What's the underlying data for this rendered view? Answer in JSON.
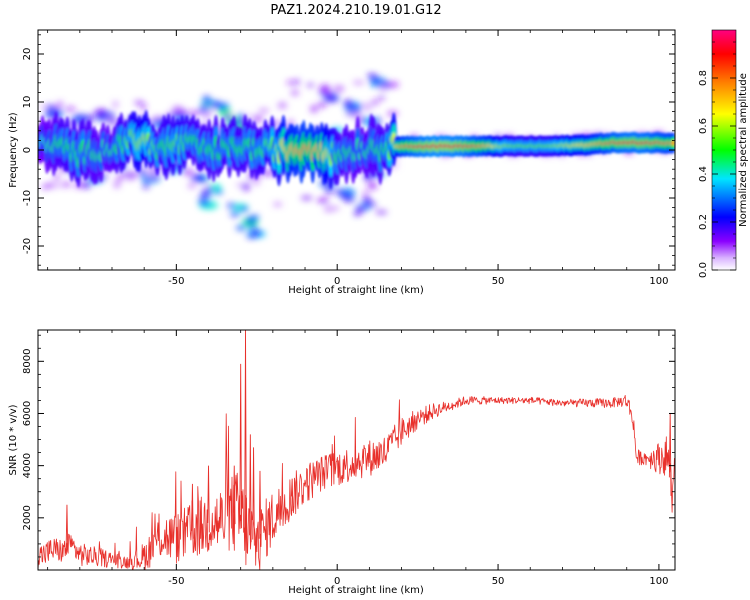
{
  "figure_title": "PAZ1.2024.210.19.01.G12",
  "chart_data": [
    {
      "type": "heatmap",
      "title": "",
      "xlabel": "Height of straight line (km)",
      "ylabel": "Frequency (Hz)",
      "xlim": [
        -93,
        105
      ],
      "ylim": [
        -25,
        25
      ],
      "x_ticks": [
        -50,
        0,
        50,
        100
      ],
      "y_ticks": [
        -20,
        -10,
        0,
        10,
        20
      ],
      "colorbar": {
        "label": "Normalized spectral amplitude",
        "range": [
          0,
          1
        ],
        "ticks": [
          0.0,
          0.2,
          0.4,
          0.6,
          0.8
        ],
        "tick_labels": [
          "0.0",
          "0.2",
          "0.4",
          "0.6",
          "0.8"
        ],
        "colormap": [
          "#ffffff",
          "#8a00ff",
          "#0000ff",
          "#00e5ff",
          "#00ff00",
          "#ffff00",
          "#ff8000",
          "#ff0000",
          "#ff0080"
        ]
      },
      "ridge": [
        {
          "x": -92,
          "f": 1.0,
          "a": 0.4
        },
        {
          "x": -85,
          "f": 0.5,
          "a": 0.5
        },
        {
          "x": -80,
          "f": -1.0,
          "a": 0.5
        },
        {
          "x": -75,
          "f": 0.0,
          "a": 0.45
        },
        {
          "x": -70,
          "f": 0.5,
          "a": 0.45
        },
        {
          "x": -65,
          "f": 2.0,
          "a": 0.55
        },
        {
          "x": -60,
          "f": 2.0,
          "a": 0.6
        },
        {
          "x": -55,
          "f": 0.0,
          "a": 0.5
        },
        {
          "x": -50,
          "f": 1.5,
          "a": 0.55
        },
        {
          "x": -45,
          "f": 1.0,
          "a": 0.5
        },
        {
          "x": -40,
          "f": 0.0,
          "a": 0.5
        },
        {
          "x": -35,
          "f": 0.0,
          "a": 0.5
        },
        {
          "x": -30,
          "f": 1.0,
          "a": 0.5
        },
        {
          "x": -25,
          "f": 0.0,
          "a": 0.5
        },
        {
          "x": -20,
          "f": 0.0,
          "a": 0.55
        },
        {
          "x": -15,
          "f": 0.0,
          "a": 0.7
        },
        {
          "x": -10,
          "f": 0.5,
          "a": 0.75
        },
        {
          "x": -5,
          "f": 0.5,
          "a": 0.7
        },
        {
          "x": 0,
          "f": -1.0,
          "a": 0.5
        },
        {
          "x": 5,
          "f": 0.0,
          "a": 0.45
        },
        {
          "x": 10,
          "f": 0.5,
          "a": 0.45
        },
        {
          "x": 15,
          "f": 0.5,
          "a": 0.5
        },
        {
          "x": 20,
          "f": 0.8,
          "a": 0.75
        },
        {
          "x": 25,
          "f": 0.8,
          "a": 0.85
        },
        {
          "x": 30,
          "f": 0.8,
          "a": 0.9
        },
        {
          "x": 35,
          "f": 0.8,
          "a": 0.9
        },
        {
          "x": 40,
          "f": 0.8,
          "a": 0.85
        },
        {
          "x": 45,
          "f": 0.8,
          "a": 0.75
        },
        {
          "x": 50,
          "f": 0.8,
          "a": 0.6
        },
        {
          "x": 55,
          "f": 0.8,
          "a": 0.55
        },
        {
          "x": 60,
          "f": 0.8,
          "a": 0.55
        },
        {
          "x": 65,
          "f": 0.8,
          "a": 0.55
        },
        {
          "x": 70,
          "f": 0.9,
          "a": 0.6
        },
        {
          "x": 75,
          "f": 1.0,
          "a": 0.65
        },
        {
          "x": 80,
          "f": 1.2,
          "a": 0.7
        },
        {
          "x": 85,
          "f": 1.5,
          "a": 0.8
        },
        {
          "x": 90,
          "f": 1.5,
          "a": 0.85
        },
        {
          "x": 95,
          "f": 1.5,
          "a": 0.85
        },
        {
          "x": 100,
          "f": 1.5,
          "a": 0.8
        },
        {
          "x": 104,
          "f": 1.5,
          "a": 0.75
        }
      ],
      "blobs": [
        {
          "x": -88,
          "f": 7.5,
          "a": 0.3
        },
        {
          "x": -80,
          "f": 6.5,
          "a": 0.3
        },
        {
          "x": -72,
          "f": 7.0,
          "a": 0.25
        },
        {
          "x": -82,
          "f": -4.0,
          "a": 0.3
        },
        {
          "x": -75,
          "f": -6.0,
          "a": 0.3
        },
        {
          "x": -68,
          "f": -3.0,
          "a": 0.3
        },
        {
          "x": -62,
          "f": 5.0,
          "a": 0.3
        },
        {
          "x": -55,
          "f": 5.5,
          "a": 0.35
        },
        {
          "x": -48,
          "f": 6.0,
          "a": 0.35
        },
        {
          "x": -40,
          "f": 9.5,
          "a": 0.4
        },
        {
          "x": -35,
          "f": 8.0,
          "a": 0.45
        },
        {
          "x": -32,
          "f": 6.0,
          "a": 0.45
        },
        {
          "x": -30,
          "f": 4.0,
          "a": 0.5
        },
        {
          "x": -42,
          "f": -6.0,
          "a": 0.4
        },
        {
          "x": -38,
          "f": -8.0,
          "a": 0.4
        },
        {
          "x": -40,
          "f": -11.5,
          "a": 0.4
        },
        {
          "x": -30,
          "f": -12.0,
          "a": 0.4
        },
        {
          "x": -27,
          "f": -15.0,
          "a": 0.45
        },
        {
          "x": -25,
          "f": -17.5,
          "a": 0.35
        },
        {
          "x": -58,
          "f": -6.0,
          "a": 0.3
        },
        {
          "x": -50,
          "f": -4.0,
          "a": 0.35
        },
        {
          "x": -2,
          "f": 11.0,
          "a": 0.3
        },
        {
          "x": 5,
          "f": 9.0,
          "a": 0.3
        },
        {
          "x": 10,
          "f": 6.0,
          "a": 0.35
        },
        {
          "x": 13,
          "f": 14.0,
          "a": 0.3
        },
        {
          "x": -3,
          "f": -7.0,
          "a": 0.3
        },
        {
          "x": 3,
          "f": -9.0,
          "a": 0.3
        },
        {
          "x": 8,
          "f": -12.0,
          "a": 0.3
        },
        {
          "x": 12,
          "f": -5.0,
          "a": 0.3
        },
        {
          "x": 0,
          "f": 4.0,
          "a": 0.35
        }
      ]
    },
    {
      "type": "line",
      "title": "",
      "xlabel": "Height of straight line (km)",
      "ylabel": "SNR (10 * v/v)",
      "xlim": [
        -93,
        105
      ],
      "ylim": [
        0,
        9200
      ],
      "x_ticks": [
        -50,
        0,
        50,
        100
      ],
      "y_ticks": [
        2000,
        4000,
        6000,
        8000
      ],
      "line_color": "#e8302b",
      "envelope": {
        "x": [
          -93,
          -88,
          -85,
          -83,
          -80,
          -75,
          -70,
          -65,
          -60,
          -55,
          -50,
          -45,
          -40,
          -35,
          -32,
          -30,
          -28,
          -25,
          -20,
          -15,
          -10,
          -5,
          0,
          5,
          10,
          15,
          20,
          25,
          30,
          35,
          40,
          45,
          50,
          55,
          60,
          65,
          70,
          75,
          80,
          85,
          90,
          92,
          93,
          95,
          100,
          103,
          104,
          105
        ],
        "y": [
          500,
          800,
          700,
          1000,
          600,
          500,
          400,
          300,
          500,
          1300,
          1200,
          1500,
          1800,
          1900,
          2200,
          2000,
          1500,
          1000,
          2000,
          2700,
          3300,
          3700,
          3900,
          4100,
          4300,
          4500,
          5300,
          5800,
          6100,
          6300,
          6500,
          6500,
          6500,
          6500,
          6500,
          6450,
          6400,
          6400,
          6400,
          6400,
          6500,
          5800,
          4300,
          4300,
          4300,
          4400,
          2700,
          4500
        ]
      },
      "noise": {
        "x": [
          -93,
          -80,
          -65,
          -55,
          -45,
          -35,
          -30,
          -25,
          -15,
          -5,
          5,
          15,
          25,
          35,
          50,
          70,
          88,
          92,
          95,
          104,
          105
        ],
        "y": [
          500,
          450,
          250,
          900,
          1100,
          1400,
          1800,
          1300,
          900,
          700,
          700,
          700,
          400,
          200,
          130,
          140,
          200,
          400,
          250,
          900,
          400
        ]
      },
      "spikes": [
        {
          "x": -84,
          "y": 2500
        },
        {
          "x": -45,
          "y": 3300
        },
        {
          "x": -40,
          "y": 4000
        },
        {
          "x": -32,
          "y": 4000
        },
        {
          "x": -30,
          "y": 7900
        },
        {
          "x": -28.5,
          "y": 9200
        },
        {
          "x": -27,
          "y": 5200
        },
        {
          "x": -26,
          "y": 4700
        },
        {
          "x": -24,
          "y": 3800
        },
        {
          "x": -14,
          "y": 3500
        },
        {
          "x": 103.5,
          "y": 6000
        }
      ]
    }
  ]
}
